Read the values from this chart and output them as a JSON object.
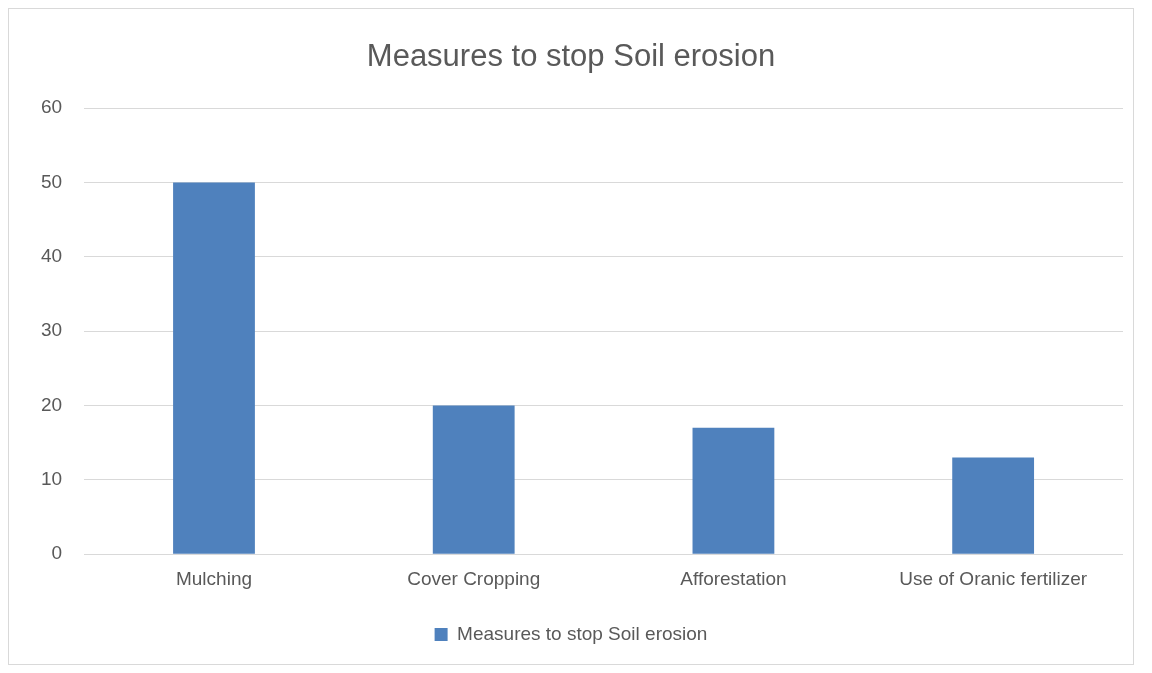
{
  "chart_data": {
    "type": "bar",
    "title": "Measures to stop Soil erosion",
    "categories": [
      "Mulching",
      "Cover Cropping",
      "Afforestation",
      "Use of Oranic fertilizer"
    ],
    "series": [
      {
        "name": "Measures to stop Soil erosion",
        "color": "#4f81bd",
        "values": [
          50,
          20,
          17,
          13
        ]
      }
    ],
    "ylim": [
      0,
      60
    ],
    "yticks": [
      0,
      10,
      20,
      30,
      40,
      50,
      60
    ],
    "grid": "y",
    "legend": "bottom"
  }
}
